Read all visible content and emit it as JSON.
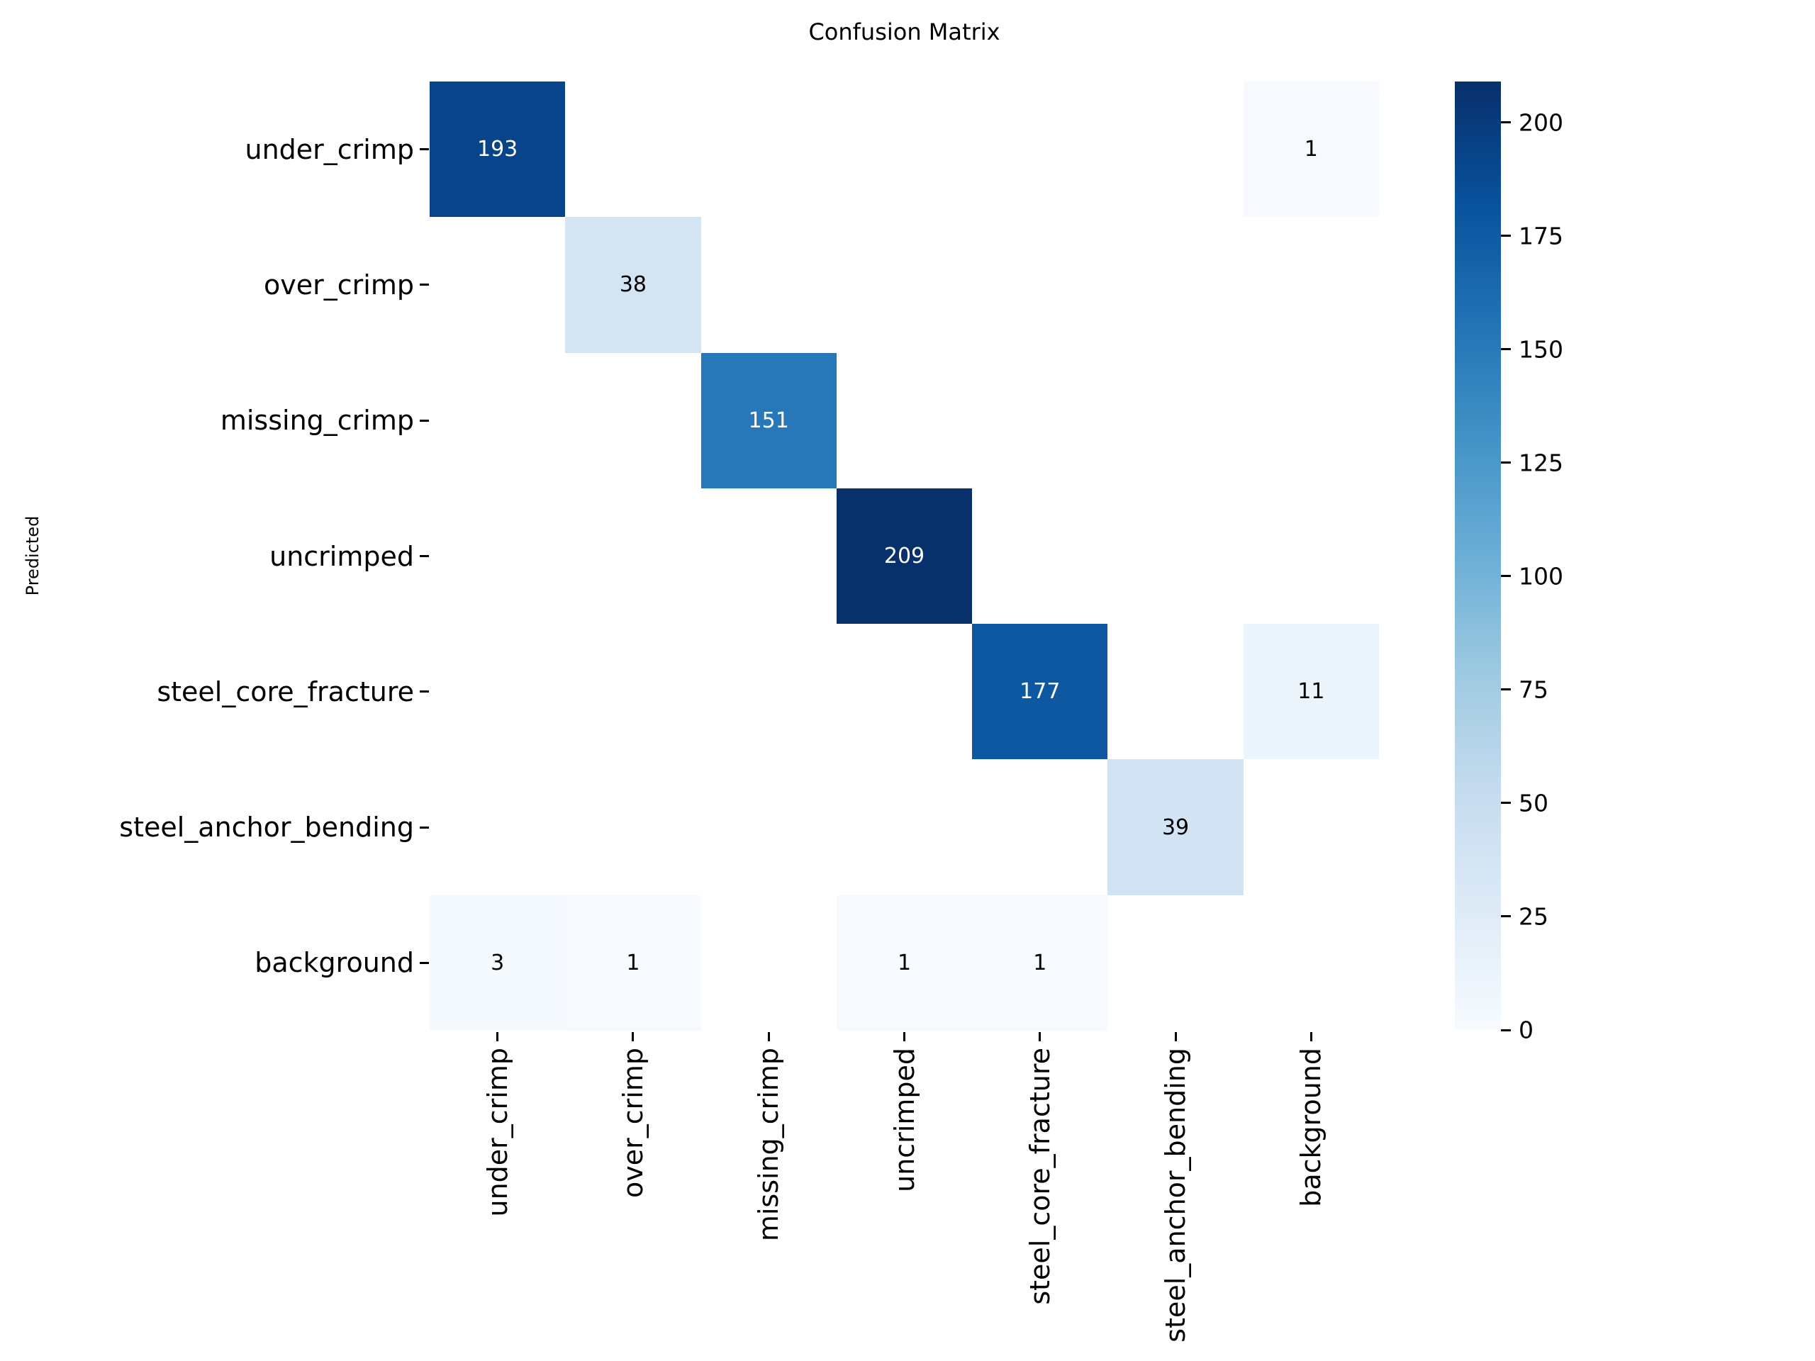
{
  "chart_data": {
    "type": "heatmap",
    "title": "Confusion Matrix",
    "ylabel": "Predicted",
    "xlabel": "",
    "categories": [
      "under_crimp",
      "over_crimp",
      "missing_crimp",
      "uncrimped",
      "steel_core_fracture",
      "steel_anchor_bending",
      "background"
    ],
    "row_axis": "Predicted",
    "matrix": [
      [
        193,
        0,
        0,
        0,
        0,
        0,
        1
      ],
      [
        0,
        38,
        0,
        0,
        0,
        0,
        0
      ],
      [
        0,
        0,
        151,
        0,
        0,
        0,
        0
      ],
      [
        0,
        0,
        0,
        209,
        0,
        0,
        0
      ],
      [
        0,
        0,
        0,
        0,
        177,
        0,
        11
      ],
      [
        0,
        0,
        0,
        0,
        0,
        39,
        0
      ],
      [
        3,
        1,
        0,
        1,
        1,
        0,
        0
      ]
    ],
    "hide_zero_cells": true,
    "vmin": 0,
    "vmax": 209,
    "colormap": "Blues",
    "colormap_stops": [
      "#f7fbff",
      "#deebf7",
      "#c6dbef",
      "#9ecae1",
      "#6baed6",
      "#4292c6",
      "#2171b5",
      "#08519c",
      "#08306b"
    ],
    "colorbar_ticks": [
      0,
      25,
      50,
      75,
      100,
      125,
      150,
      175,
      200
    ],
    "legend_position": "right",
    "grid": false,
    "annotation_text_light": "#ffffff",
    "annotation_text_dark": "#000000",
    "background_color": "#ffffff"
  }
}
